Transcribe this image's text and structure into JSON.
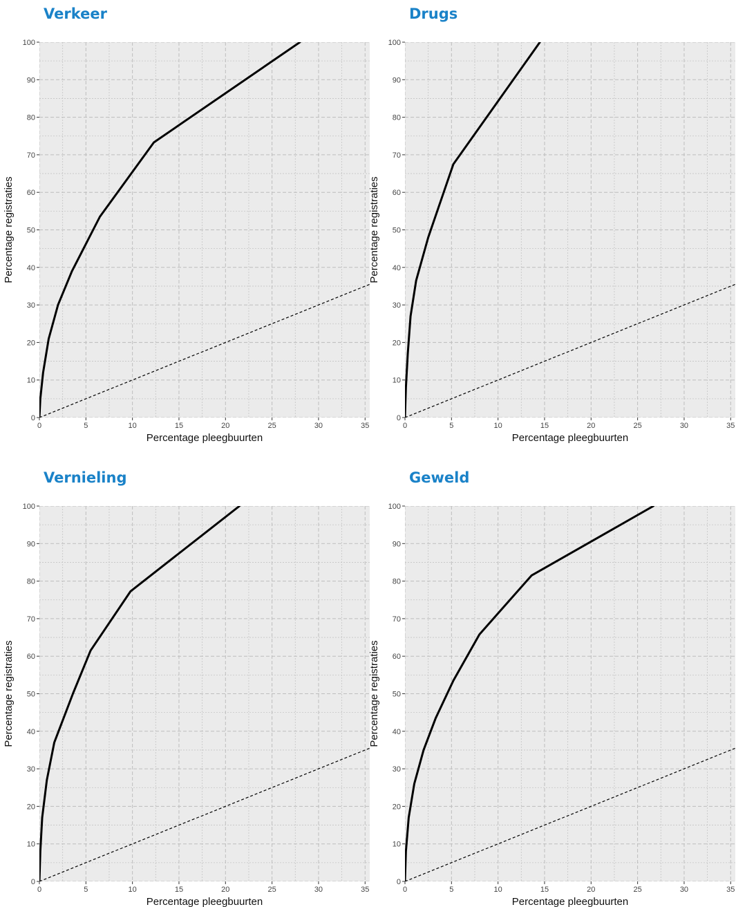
{
  "chart_data": [
    {
      "type": "line",
      "title": "Verkeer",
      "xlabel": "Percentage pleegbuurten",
      "ylabel": "Percentage registraties",
      "xlim": [
        0,
        35.5
      ],
      "ylim": [
        0,
        100
      ],
      "x_ticks": [
        0,
        5,
        10,
        15,
        20,
        25,
        30,
        35
      ],
      "y_ticks": [
        0,
        10,
        20,
        30,
        40,
        50,
        60,
        70,
        80,
        90,
        100
      ],
      "grid": true,
      "series": [
        {
          "x": [
            0,
            0.1,
            0.4,
            1,
            2,
            3.5,
            6.5,
            12.3,
            28
          ],
          "y": [
            0,
            5,
            12,
            21,
            30,
            39,
            53.5,
            73.3,
            100
          ]
        },
        {
          "x": [
            0,
            35.5
          ],
          "y": [
            0,
            35.5
          ]
        }
      ]
    },
    {
      "type": "line",
      "title": "Drugs",
      "xlabel": "Percentage pleegbuurten",
      "ylabel": "Percentage registraties",
      "xlim": [
        0,
        35.5
      ],
      "ylim": [
        0,
        100
      ],
      "x_ticks": [
        0,
        5,
        10,
        15,
        20,
        25,
        30,
        35
      ],
      "y_ticks": [
        0,
        10,
        20,
        30,
        40,
        50,
        60,
        70,
        80,
        90,
        100
      ],
      "grid": true,
      "series": [
        {
          "x": [
            0,
            0.1,
            0.3,
            0.6,
            1.2,
            2.5,
            5.2,
            14.5
          ],
          "y": [
            0,
            8,
            17,
            27,
            36.5,
            48,
            67.5,
            100
          ]
        },
        {
          "x": [
            0,
            35.5
          ],
          "y": [
            0,
            35.5
          ]
        }
      ]
    },
    {
      "type": "line",
      "title": "Vernieling",
      "xlabel": "Percentage pleegbuurten",
      "ylabel": "Percentage registraties",
      "xlim": [
        0,
        35.5
      ],
      "ylim": [
        0,
        100
      ],
      "x_ticks": [
        0,
        5,
        10,
        15,
        20,
        25,
        30,
        35
      ],
      "y_ticks": [
        0,
        10,
        20,
        30,
        40,
        50,
        60,
        70,
        80,
        90,
        100
      ],
      "grid": true,
      "series": [
        {
          "x": [
            0,
            0.1,
            0.3,
            0.8,
            1.6,
            3.6,
            5.5,
            9.8,
            21.5
          ],
          "y": [
            0,
            8,
            17,
            27,
            37,
            50,
            61.5,
            77.3,
            100
          ]
        },
        {
          "x": [
            0,
            35.5
          ],
          "y": [
            0,
            35.5
          ]
        }
      ]
    },
    {
      "type": "line",
      "title": "Geweld",
      "xlabel": "Percentage pleegbuurten",
      "ylabel": "Percentage registraties",
      "xlim": [
        0,
        35.5
      ],
      "ylim": [
        0,
        100
      ],
      "x_ticks": [
        0,
        5,
        10,
        15,
        20,
        25,
        30,
        35
      ],
      "y_ticks": [
        0,
        10,
        20,
        30,
        40,
        50,
        60,
        70,
        80,
        90,
        100
      ],
      "grid": true,
      "series": [
        {
          "x": [
            0,
            0.1,
            0.4,
            1,
            2,
            3.3,
            5.2,
            8,
            13.6,
            26.7
          ],
          "y": [
            0,
            8,
            17,
            26,
            35,
            43.5,
            53.5,
            65.8,
            81.5,
            100
          ]
        },
        {
          "x": [
            0,
            35.5
          ],
          "y": [
            0,
            35.5
          ]
        }
      ]
    }
  ]
}
